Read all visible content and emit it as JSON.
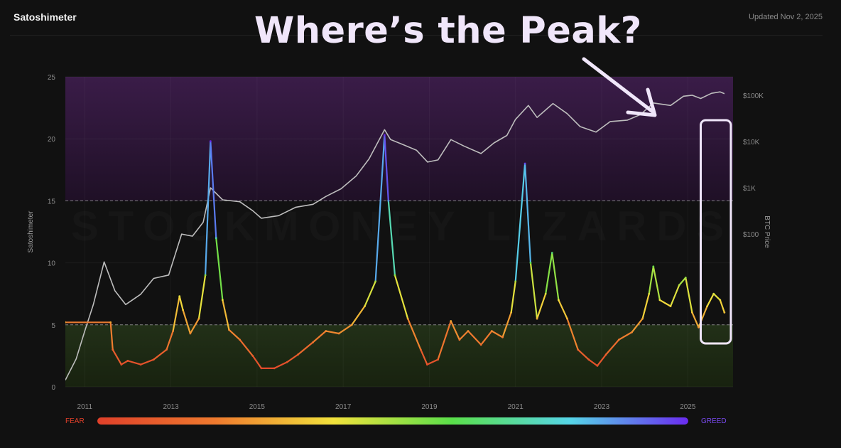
{
  "header": {
    "app_title": "Satoshimeter",
    "updated": "Updated Nov 2, 2025"
  },
  "headline": "Where’s the Peak?",
  "watermark": "STOCKMONEY LIZARDS",
  "colors": {
    "background": "#111111",
    "greed_zone": "#2d1638",
    "fear_zone": "#1c2a17",
    "btc_price_line": "#bdbdbd",
    "fear": "#e0402a",
    "greed": "#6a2bf0",
    "annotation": "#f0e6fa"
  },
  "legend": {
    "fear_label": "FEAR",
    "greed_label": "GREED"
  },
  "chart_data": {
    "type": "line",
    "ylabel": "Satoshimeter",
    "ylabel_right": "BTC Price",
    "ylim": [
      0,
      25
    ],
    "yticks": [
      "0",
      "5",
      "10",
      "15",
      "20",
      "25"
    ],
    "xticks": [
      "2011",
      "2013",
      "2015",
      "2017",
      "2019",
      "2021",
      "2023",
      "2025"
    ],
    "xlim": [
      2010.55,
      2026.05
    ],
    "right_ticks": [
      "$100",
      "$1K",
      "$10K",
      "$100K"
    ],
    "right_scale": "log",
    "right_ylim": [
      0.05,
      250000
    ],
    "thresholds": [
      {
        "value": 15,
        "zone": "greed",
        "range": [
          15,
          25
        ]
      },
      {
        "value": 5,
        "zone": "fear",
        "range": [
          0,
          5
        ]
      }
    ],
    "series": [
      {
        "name": "",
        "color_scale": "fear-to-greed",
        "points": [
          [
            2010.55,
            5.2
          ],
          [
            2011.6,
            5.2
          ],
          [
            2011.65,
            3.0
          ],
          [
            2011.85,
            1.8
          ],
          [
            2012.0,
            2.1
          ],
          [
            2012.3,
            1.8
          ],
          [
            2012.6,
            2.2
          ],
          [
            2012.9,
            3.0
          ],
          [
            2013.05,
            4.5
          ],
          [
            2013.2,
            7.3
          ],
          [
            2013.28,
            6.2
          ],
          [
            2013.45,
            4.3
          ],
          [
            2013.65,
            5.5
          ],
          [
            2013.8,
            9.0
          ],
          [
            2013.92,
            19.8
          ],
          [
            2014.05,
            12.0
          ],
          [
            2014.2,
            7.0
          ],
          [
            2014.35,
            4.6
          ],
          [
            2014.6,
            3.8
          ],
          [
            2014.9,
            2.5
          ],
          [
            2015.1,
            1.5
          ],
          [
            2015.4,
            1.5
          ],
          [
            2015.7,
            2.0
          ],
          [
            2015.95,
            2.6
          ],
          [
            2016.3,
            3.6
          ],
          [
            2016.6,
            4.5
          ],
          [
            2016.9,
            4.3
          ],
          [
            2017.2,
            5.0
          ],
          [
            2017.5,
            6.5
          ],
          [
            2017.75,
            8.5
          ],
          [
            2017.96,
            20.3
          ],
          [
            2018.05,
            15.0
          ],
          [
            2018.2,
            9.0
          ],
          [
            2018.5,
            5.5
          ],
          [
            2018.8,
            3.0
          ],
          [
            2018.95,
            1.8
          ],
          [
            2019.2,
            2.2
          ],
          [
            2019.5,
            5.3
          ],
          [
            2019.7,
            3.8
          ],
          [
            2019.9,
            4.5
          ],
          [
            2020.2,
            3.4
          ],
          [
            2020.45,
            4.5
          ],
          [
            2020.7,
            4.0
          ],
          [
            2020.9,
            6.0
          ],
          [
            2021.0,
            8.5
          ],
          [
            2021.22,
            18.0
          ],
          [
            2021.35,
            10.0
          ],
          [
            2021.5,
            5.5
          ],
          [
            2021.7,
            7.5
          ],
          [
            2021.85,
            10.8
          ],
          [
            2022.0,
            7.0
          ],
          [
            2022.2,
            5.5
          ],
          [
            2022.45,
            3.0
          ],
          [
            2022.7,
            2.2
          ],
          [
            2022.9,
            1.7
          ],
          [
            2023.1,
            2.6
          ],
          [
            2023.4,
            3.8
          ],
          [
            2023.7,
            4.4
          ],
          [
            2023.95,
            5.5
          ],
          [
            2024.1,
            7.5
          ],
          [
            2024.2,
            9.7
          ],
          [
            2024.35,
            7.0
          ],
          [
            2024.6,
            6.5
          ],
          [
            2024.8,
            8.2
          ],
          [
            2024.95,
            8.8
          ],
          [
            2025.1,
            6.0
          ],
          [
            2025.25,
            4.8
          ],
          [
            2025.45,
            6.5
          ],
          [
            2025.6,
            7.5
          ],
          [
            2025.75,
            7.0
          ],
          [
            2025.85,
            6.0
          ]
        ]
      },
      {
        "name": "BTC Price",
        "axis": "right",
        "points": [
          [
            2010.55,
            0.07
          ],
          [
            2010.8,
            0.2
          ],
          [
            2011.0,
            0.8
          ],
          [
            2011.2,
            3
          ],
          [
            2011.45,
            25
          ],
          [
            2011.7,
            6
          ],
          [
            2011.95,
            3
          ],
          [
            2012.3,
            5
          ],
          [
            2012.6,
            11
          ],
          [
            2012.95,
            13
          ],
          [
            2013.25,
            100
          ],
          [
            2013.5,
            90
          ],
          [
            2013.75,
            180
          ],
          [
            2013.92,
            1000
          ],
          [
            2014.2,
            550
          ],
          [
            2014.6,
            500
          ],
          [
            2014.9,
            320
          ],
          [
            2015.1,
            220
          ],
          [
            2015.5,
            250
          ],
          [
            2015.9,
            380
          ],
          [
            2016.3,
            440
          ],
          [
            2016.6,
            650
          ],
          [
            2016.95,
            950
          ],
          [
            2017.3,
            1800
          ],
          [
            2017.6,
            4200
          ],
          [
            2017.96,
            18000
          ],
          [
            2018.1,
            11000
          ],
          [
            2018.4,
            8500
          ],
          [
            2018.7,
            6500
          ],
          [
            2018.96,
            3600
          ],
          [
            2019.2,
            4000
          ],
          [
            2019.5,
            11000
          ],
          [
            2019.8,
            8000
          ],
          [
            2020.2,
            5500
          ],
          [
            2020.5,
            9300
          ],
          [
            2020.8,
            13500
          ],
          [
            2021.0,
            30000
          ],
          [
            2021.3,
            60000
          ],
          [
            2021.5,
            33000
          ],
          [
            2021.87,
            66000
          ],
          [
            2022.2,
            40000
          ],
          [
            2022.5,
            21000
          ],
          [
            2022.87,
            16000
          ],
          [
            2023.2,
            27000
          ],
          [
            2023.6,
            29000
          ],
          [
            2023.9,
            38000
          ],
          [
            2024.2,
            68000
          ],
          [
            2024.6,
            60000
          ],
          [
            2024.9,
            95000
          ],
          [
            2025.1,
            100000
          ],
          [
            2025.3,
            85000
          ],
          [
            2025.55,
            110000
          ],
          [
            2025.75,
            118000
          ],
          [
            2025.85,
            108000
          ]
        ]
      }
    ],
    "annotation": {
      "shape": "rounded-rectangle",
      "x_range": [
        2025.3,
        2026.0
      ],
      "y_range": [
        3.5,
        21.5
      ],
      "arrow": true
    }
  }
}
